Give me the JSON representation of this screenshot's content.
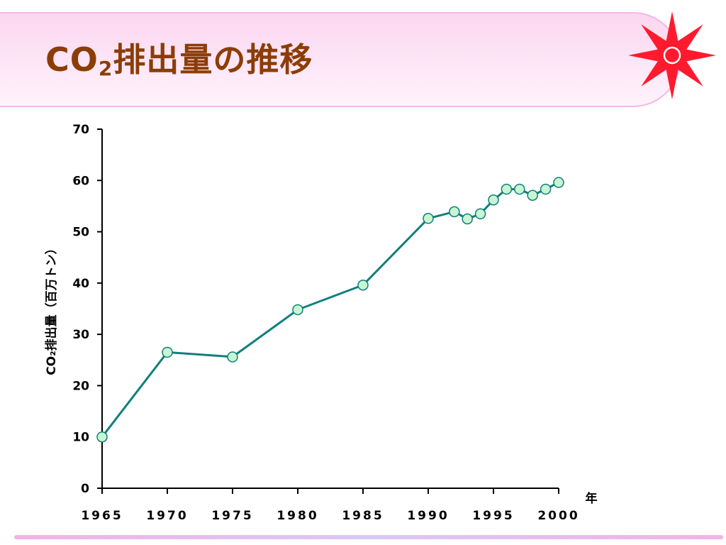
{
  "slide": {
    "title_prefix": "CO",
    "title_sub": "2",
    "title_suffix": "排出量の推移"
  },
  "colors": {
    "line": "#0f7f7c",
    "marker_fill": "#c8f5d2",
    "marker_stroke": "#0f7f7c",
    "title": "#8b3d06",
    "logo": "#ff1a2e"
  },
  "chart_data": {
    "type": "line",
    "title": "",
    "xlabel": "年",
    "ylabel": "CO₂排出量（百万トン）",
    "xlim": [
      1965,
      2000
    ],
    "ylim": [
      0,
      70
    ],
    "xticks": [
      1965,
      1970,
      1975,
      1980,
      1985,
      1990,
      1995,
      2000
    ],
    "yticks": [
      0,
      10,
      20,
      30,
      40,
      50,
      60,
      70
    ],
    "grid": false,
    "legend": "none",
    "series": [
      {
        "x": [
          1965,
          1970,
          1975,
          1980,
          1985,
          1990,
          1992,
          1993,
          1994,
          1995,
          1996,
          1997,
          1998,
          1999,
          2000
        ],
        "y": [
          10.0,
          26.5,
          25.6,
          34.8,
          39.6,
          52.6,
          53.9,
          52.5,
          53.5,
          56.2,
          58.3,
          58.3,
          57.1,
          58.3,
          59.6
        ]
      }
    ]
  }
}
